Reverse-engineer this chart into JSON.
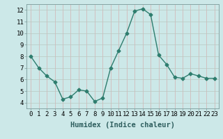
{
  "x": [
    0,
    1,
    2,
    3,
    4,
    5,
    6,
    7,
    8,
    9,
    10,
    11,
    12,
    13,
    14,
    15,
    16,
    17,
    18,
    19,
    20,
    21,
    22,
    23
  ],
  "y": [
    8.0,
    7.0,
    6.3,
    5.8,
    4.3,
    4.5,
    5.1,
    5.0,
    4.1,
    4.4,
    7.0,
    8.5,
    10.0,
    11.9,
    12.1,
    11.6,
    8.1,
    7.3,
    6.2,
    6.1,
    6.5,
    6.3,
    6.1,
    6.1
  ],
  "xlabel": "Humidex (Indice chaleur)",
  "line_color": "#2e7d6e",
  "marker": "D",
  "marker_size": 2.5,
  "bg_color": "#cce8e8",
  "grid_color_h": "#b8c8c0",
  "grid_color_v": "#d4b0b0",
  "xlim": [
    -0.5,
    23.5
  ],
  "ylim": [
    3.5,
    12.5
  ],
  "yticks": [
    4,
    5,
    6,
    7,
    8,
    9,
    10,
    11,
    12
  ],
  "xtick_labels": [
    "0",
    "1",
    "2",
    "3",
    "4",
    "5",
    "6",
    "7",
    "8",
    "9",
    "10",
    "11",
    "12",
    "13",
    "14",
    "15",
    "16",
    "17",
    "18",
    "19",
    "20",
    "21",
    "22",
    "23"
  ],
  "xlabel_fontsize": 7.5,
  "tick_fontsize": 6.5
}
